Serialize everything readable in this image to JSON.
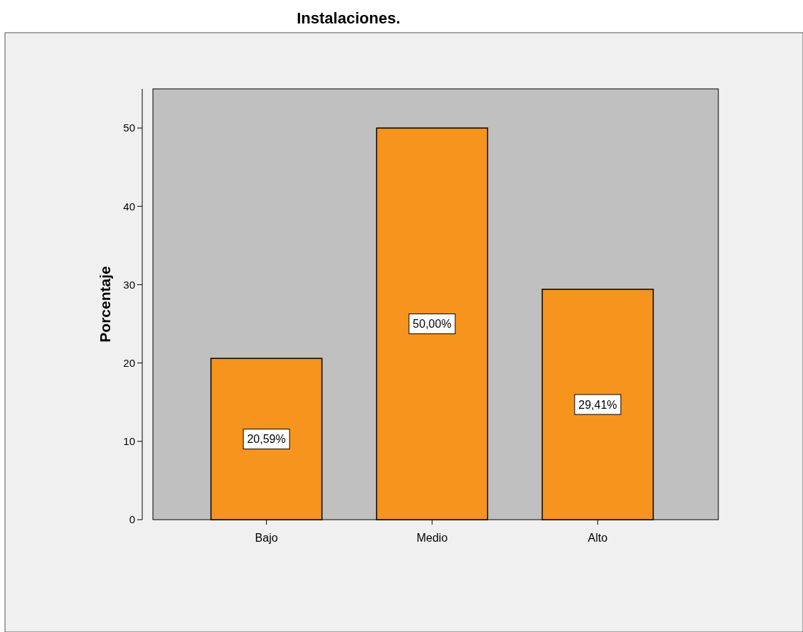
{
  "chart_data": {
    "type": "bar",
    "title": "Instalaciones.",
    "ylabel": "Porcentaje",
    "categories": [
      "Bajo",
      "Medio",
      "Alto"
    ],
    "values": [
      20.59,
      50,
      29.41
    ],
    "value_labels": [
      "20,59%",
      "50,00%",
      "29,41%"
    ],
    "color": "#f7941d",
    "ylim": [
      0,
      55
    ],
    "yticks": [
      0,
      10,
      20,
      30,
      40,
      50
    ]
  }
}
